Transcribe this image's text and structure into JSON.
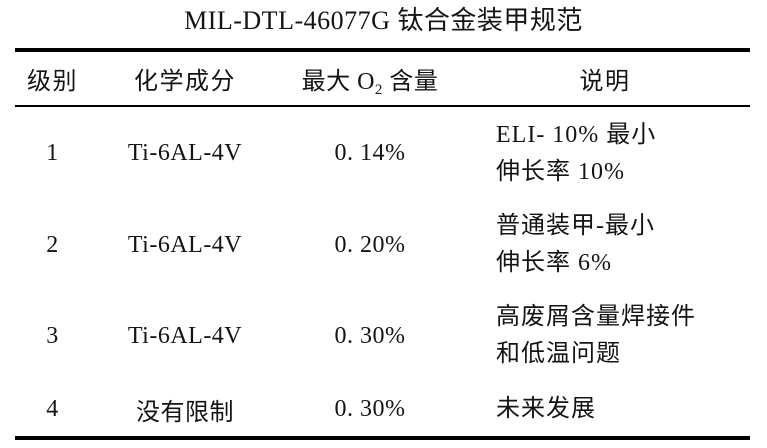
{
  "title": "MIL-DTL-46077G 钛合金装甲规范",
  "colors": {
    "text": "#141414",
    "rule": "#000000",
    "background": "#ffffff"
  },
  "table": {
    "headers": {
      "grade": "级别",
      "composition": "化学成分",
      "o2_prefix": "最大 O",
      "o2_sub": "2",
      "o2_suffix": " 含量",
      "description": "说明"
    },
    "rows": [
      {
        "grade": "1",
        "composition": "Ti-6AL-4V",
        "max_o2": "0. 14%",
        "description": "ELI- 10% 最小\n伸长率 10%"
      },
      {
        "grade": "2",
        "composition": "Ti-6AL-4V",
        "max_o2": "0. 20%",
        "description": "普通装甲-最小\n伸长率 6%"
      },
      {
        "grade": "3",
        "composition": "Ti-6AL-4V",
        "max_o2": "0. 30%",
        "description": "高废屑含量焊接件\n和低温问题"
      },
      {
        "grade": "4",
        "composition": "没有限制",
        "max_o2": "0. 30%",
        "description": "未来发展"
      }
    ]
  }
}
